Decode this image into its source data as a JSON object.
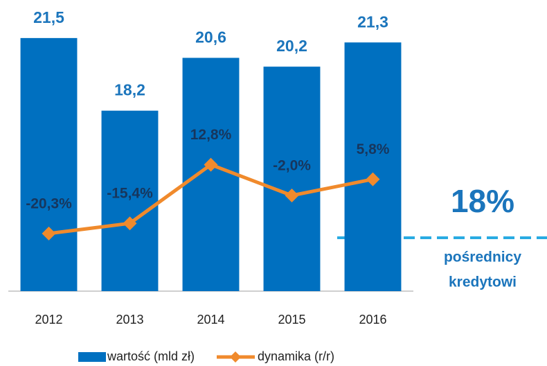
{
  "chart_data": {
    "type": "bar",
    "categories": [
      "2012",
      "2013",
      "2014",
      "2015",
      "2016"
    ],
    "series": [
      {
        "name": "wartość (mld zł)",
        "type": "bar",
        "color": "#0070c0",
        "axis": "y",
        "values": [
          21.5,
          18.2,
          20.6,
          20.2,
          21.3
        ],
        "value_labels": [
          "21,5",
          "18,2",
          "20,6",
          "20,2",
          "21,3"
        ]
      },
      {
        "name": "dynamika (r/r)",
        "type": "line",
        "color": "#f08a2c",
        "axis": "y2",
        "values": [
          -20.3,
          -15.4,
          12.8,
          -2.0,
          5.8
        ],
        "value_labels": [
          "-20,3%",
          "-15,4%",
          "12,8%",
          "-2,0%",
          "5,8%"
        ]
      }
    ],
    "ylim": [
      10,
      22
    ],
    "y2lim": [
      -48,
      79
    ],
    "annotations": {
      "big": "18%",
      "lines": [
        "pośrednicy",
        "kredytowi"
      ]
    }
  }
}
